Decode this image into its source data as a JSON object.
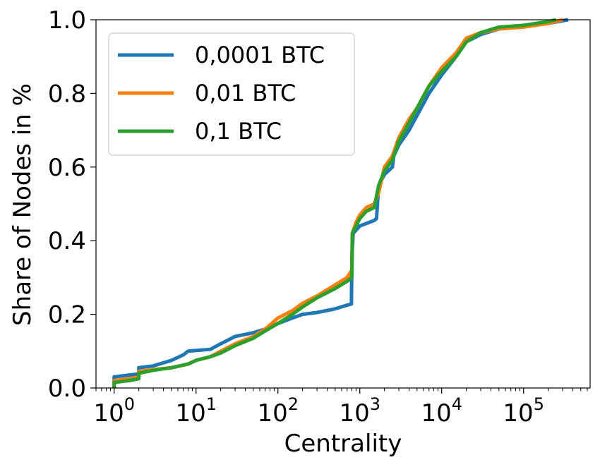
{
  "chart_data": {
    "type": "line",
    "xlabel": "Centrality",
    "ylabel": "Share of Nodes in %",
    "xscale": "log",
    "xlim": [
      0.6,
      650000
    ],
    "ylim": [
      0.0,
      1.0
    ],
    "grid": false,
    "legend_position": "upper-left",
    "x_ticks": [
      {
        "value": 1,
        "base": "10",
        "exp": "0"
      },
      {
        "value": 10,
        "base": "10",
        "exp": "1"
      },
      {
        "value": 100,
        "base": "10",
        "exp": "2"
      },
      {
        "value": 1000,
        "base": "10",
        "exp": "3"
      },
      {
        "value": 10000,
        "base": "10",
        "exp": "4"
      },
      {
        "value": 100000,
        "base": "10",
        "exp": "5"
      }
    ],
    "y_ticks": [
      {
        "value": 0.0,
        "label": "0.0"
      },
      {
        "value": 0.2,
        "label": "0.2"
      },
      {
        "value": 0.4,
        "label": "0.4"
      },
      {
        "value": 0.6,
        "label": "0.6"
      },
      {
        "value": 0.8,
        "label": "0.8"
      },
      {
        "value": 1.0,
        "label": "1.0"
      }
    ],
    "series": [
      {
        "name": "0,0001 BTC",
        "color": "#1f77b4",
        "points": [
          [
            1,
            0.0
          ],
          [
            1,
            0.03
          ],
          [
            1.5,
            0.035
          ],
          [
            2,
            0.038
          ],
          [
            2,
            0.055
          ],
          [
            3,
            0.06
          ],
          [
            5,
            0.075
          ],
          [
            7,
            0.09
          ],
          [
            8,
            0.1
          ],
          [
            15,
            0.105
          ],
          [
            20,
            0.12
          ],
          [
            30,
            0.14
          ],
          [
            50,
            0.15
          ],
          [
            70,
            0.16
          ],
          [
            100,
            0.175
          ],
          [
            150,
            0.19
          ],
          [
            200,
            0.2
          ],
          [
            300,
            0.205
          ],
          [
            500,
            0.215
          ],
          [
            700,
            0.225
          ],
          [
            790,
            0.228
          ],
          [
            800,
            0.35
          ],
          [
            830,
            0.42
          ],
          [
            1000,
            0.44
          ],
          [
            1500,
            0.455
          ],
          [
            1600,
            0.46
          ],
          [
            1700,
            0.55
          ],
          [
            2000,
            0.58
          ],
          [
            2500,
            0.6
          ],
          [
            2600,
            0.63
          ],
          [
            3000,
            0.66
          ],
          [
            4000,
            0.7
          ],
          [
            5000,
            0.74
          ],
          [
            7000,
            0.8
          ],
          [
            10000,
            0.85
          ],
          [
            15000,
            0.9
          ],
          [
            20000,
            0.94
          ],
          [
            30000,
            0.96
          ],
          [
            50000,
            0.975
          ],
          [
            80000,
            0.98
          ],
          [
            120000,
            0.985
          ],
          [
            200000,
            0.99
          ],
          [
            350000,
            1.0
          ]
        ]
      },
      {
        "name": "0,01 BTC",
        "color": "#ff7f0e",
        "points": [
          [
            1,
            0.0
          ],
          [
            1,
            0.02
          ],
          [
            1.5,
            0.025
          ],
          [
            2,
            0.03
          ],
          [
            2,
            0.045
          ],
          [
            3,
            0.05
          ],
          [
            5,
            0.055
          ],
          [
            8,
            0.065
          ],
          [
            10,
            0.075
          ],
          [
            15,
            0.085
          ],
          [
            20,
            0.1
          ],
          [
            30,
            0.12
          ],
          [
            50,
            0.14
          ],
          [
            70,
            0.16
          ],
          [
            100,
            0.19
          ],
          [
            150,
            0.21
          ],
          [
            200,
            0.23
          ],
          [
            300,
            0.25
          ],
          [
            500,
            0.28
          ],
          [
            700,
            0.3
          ],
          [
            800,
            0.32
          ],
          [
            810,
            0.42
          ],
          [
            900,
            0.45
          ],
          [
            1000,
            0.47
          ],
          [
            1200,
            0.49
          ],
          [
            1500,
            0.5
          ],
          [
            1700,
            0.53
          ],
          [
            2000,
            0.6
          ],
          [
            2500,
            0.63
          ],
          [
            3000,
            0.68
          ],
          [
            4000,
            0.73
          ],
          [
            5000,
            0.76
          ],
          [
            7000,
            0.82
          ],
          [
            10000,
            0.87
          ],
          [
            15000,
            0.91
          ],
          [
            20000,
            0.95
          ],
          [
            30000,
            0.965
          ],
          [
            50000,
            0.975
          ],
          [
            100000,
            0.98
          ],
          [
            200000,
            0.99
          ],
          [
            300000,
            1.0
          ]
        ]
      },
      {
        "name": "0,1 BTC",
        "color": "#2ca02c",
        "points": [
          [
            1,
            0.0
          ],
          [
            1,
            0.015
          ],
          [
            1.5,
            0.02
          ],
          [
            2,
            0.025
          ],
          [
            2,
            0.04
          ],
          [
            3,
            0.048
          ],
          [
            5,
            0.055
          ],
          [
            8,
            0.065
          ],
          [
            10,
            0.075
          ],
          [
            15,
            0.085
          ],
          [
            20,
            0.095
          ],
          [
            30,
            0.115
          ],
          [
            50,
            0.135
          ],
          [
            70,
            0.155
          ],
          [
            100,
            0.175
          ],
          [
            150,
            0.2
          ],
          [
            200,
            0.22
          ],
          [
            300,
            0.245
          ],
          [
            500,
            0.27
          ],
          [
            700,
            0.29
          ],
          [
            800,
            0.3
          ],
          [
            810,
            0.42
          ],
          [
            900,
            0.44
          ],
          [
            1000,
            0.46
          ],
          [
            1200,
            0.48
          ],
          [
            1500,
            0.49
          ],
          [
            1700,
            0.55
          ],
          [
            2000,
            0.59
          ],
          [
            2500,
            0.62
          ],
          [
            3000,
            0.67
          ],
          [
            4000,
            0.72
          ],
          [
            5000,
            0.76
          ],
          [
            7000,
            0.82
          ],
          [
            10000,
            0.86
          ],
          [
            15000,
            0.9
          ],
          [
            20000,
            0.94
          ],
          [
            30000,
            0.965
          ],
          [
            50000,
            0.98
          ],
          [
            100000,
            0.985
          ],
          [
            200000,
            0.995
          ],
          [
            250000,
            1.0
          ]
        ]
      }
    ]
  }
}
